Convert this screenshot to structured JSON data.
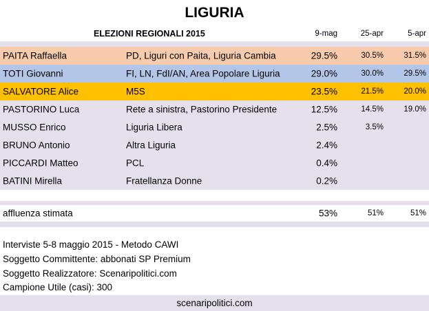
{
  "title": "LIGURIA",
  "header": {
    "label": "ELEZIONI REGIONALI 2015",
    "col1": "9-mag",
    "col2": "25-apr",
    "col3": "5-apr"
  },
  "candidates": [
    {
      "name": "PAITA Raffaella",
      "party": "PD, Liguri con Paita, Liguria Cambia",
      "p1": "29.5%",
      "p2": "30.5%",
      "p3": "31.5%",
      "color": "#f8cbad"
    },
    {
      "name": "TOTI Giovanni",
      "party": "FI, LN, FdI/AN, Area Popolare Liguria",
      "p1": "29.0%",
      "p2": "30.0%",
      "p3": "29.5%",
      "color": "#b4c6e7"
    },
    {
      "name": "SALVATORE Alice",
      "party": "M5S",
      "p1": "23.5%",
      "p2": "21.5%",
      "p3": "20.0%",
      "color": "#ffc000"
    },
    {
      "name": "PASTORINO Luca",
      "party": "Rete a sinistra, Pastorino Presidente",
      "p1": "12.5%",
      "p2": "14.5%",
      "p3": "19.0%",
      "color": "#e6e0ec"
    },
    {
      "name": "MUSSO Enrico",
      "party": "Liguria Libera",
      "p1": "2.5%",
      "p2": "3.5%",
      "p3": "",
      "color": "#e6e0ec"
    },
    {
      "name": "BRUNO Antonio",
      "party": "Altra Liguria",
      "p1": "2.4%",
      "p2": "",
      "p3": "",
      "color": "#e6e0ec"
    },
    {
      "name": "PICCARDI Matteo",
      "party": "PCL",
      "p1": "0.4%",
      "p2": "",
      "p3": "",
      "color": "#e6e0ec"
    },
    {
      "name": "BATINI Mirella",
      "party": "Fratellanza Donne",
      "p1": "0.2%",
      "p2": "",
      "p3": "",
      "color": "#e6e0ec"
    }
  ],
  "turnout": {
    "label": "affluenza stimata",
    "p1": "53%",
    "p2": "51%",
    "p3": "51%"
  },
  "notes": {
    "line1": "Interviste 5-8 maggio 2015 - Metodo CAWI",
    "line2": "Soggetto Committente: abbonati SP Premium",
    "line3": "Soggetto Realizzatore: Scenaripolitici.com",
    "line4": "Campione Utile (casi): 300"
  },
  "site": "scenaripolitici.com"
}
